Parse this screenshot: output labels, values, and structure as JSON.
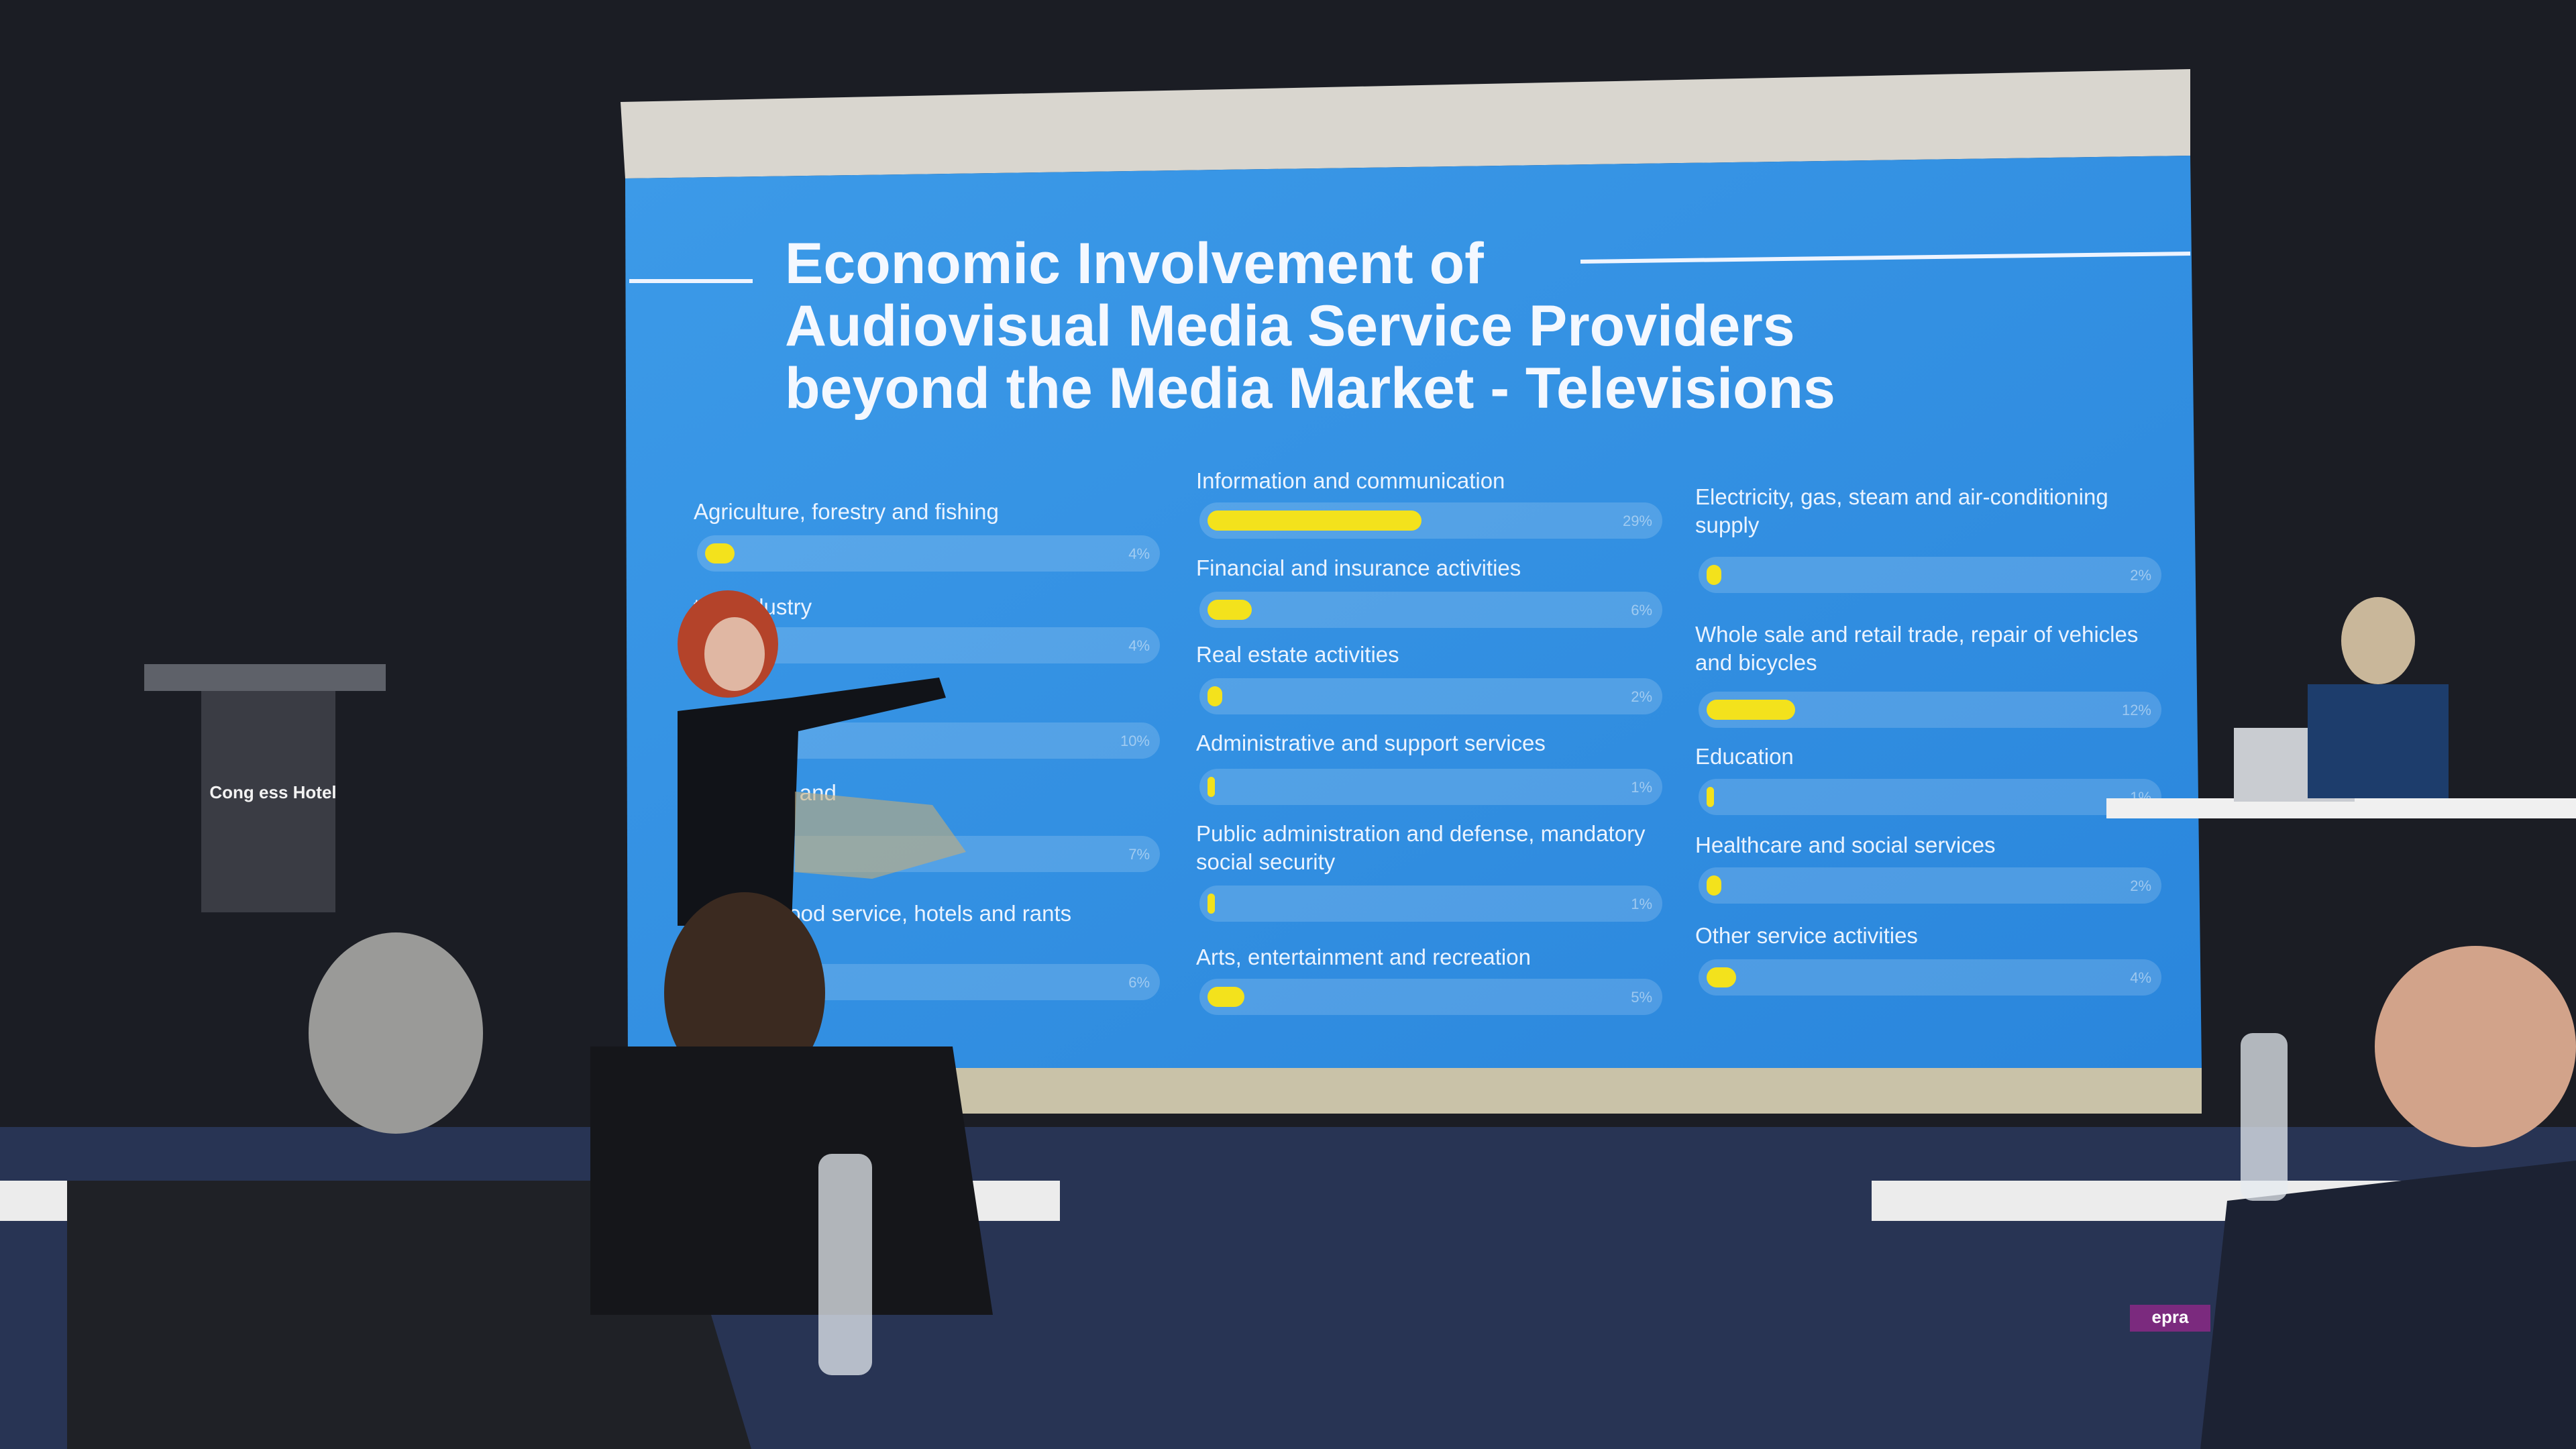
{
  "slide": {
    "title_lines": [
      "Economic Involvement of",
      "Audiovisual Media Service Providers",
      "beyond the Media Market - Televisions"
    ]
  },
  "scene": {
    "podium_sign": "Cong ess Hotel",
    "desk_sign": "epra"
  },
  "chart_data": [
    {
      "type": "bar",
      "orientation": "horizontal",
      "color": "#f3e21c",
      "xlim": [
        0,
        60
      ],
      "categories": [
        "Agriculture, forestry and fishing",
        "tive industry",
        null,
        "rt, storage and",
        "ality and food service, hotels and rants"
      ],
      "values": [
        4,
        4,
        10,
        7,
        6
      ],
      "value_labels": [
        "4%",
        "4%",
        "10%",
        "7%",
        "6%"
      ]
    },
    {
      "type": "bar",
      "orientation": "horizontal",
      "color": "#f3e21c",
      "xlim": [
        0,
        60
      ],
      "categories": [
        "Information and communication",
        "Financial and insurance activities",
        "Real estate activities",
        "Administrative and support services",
        "Public administration and defense, mandatory social security",
        "Arts, entertainment and recreation"
      ],
      "values": [
        29,
        6,
        2,
        1,
        1,
        5
      ],
      "value_labels": [
        "29%",
        "6%",
        "2%",
        "1%",
        "1%",
        "5%"
      ]
    },
    {
      "type": "bar",
      "orientation": "horizontal",
      "color": "#f3e21c",
      "xlim": [
        0,
        60
      ],
      "categories": [
        "Electricity, gas, steam and air-conditioning supply",
        "Whole sale and retail trade, repair of vehicles and bicycles",
        "Education",
        "Healthcare and social services",
        "Other service activities"
      ],
      "values": [
        2,
        12,
        1,
        2,
        4
      ],
      "value_labels": [
        "2%",
        "12%",
        "1%",
        "2%",
        "4%"
      ]
    }
  ]
}
